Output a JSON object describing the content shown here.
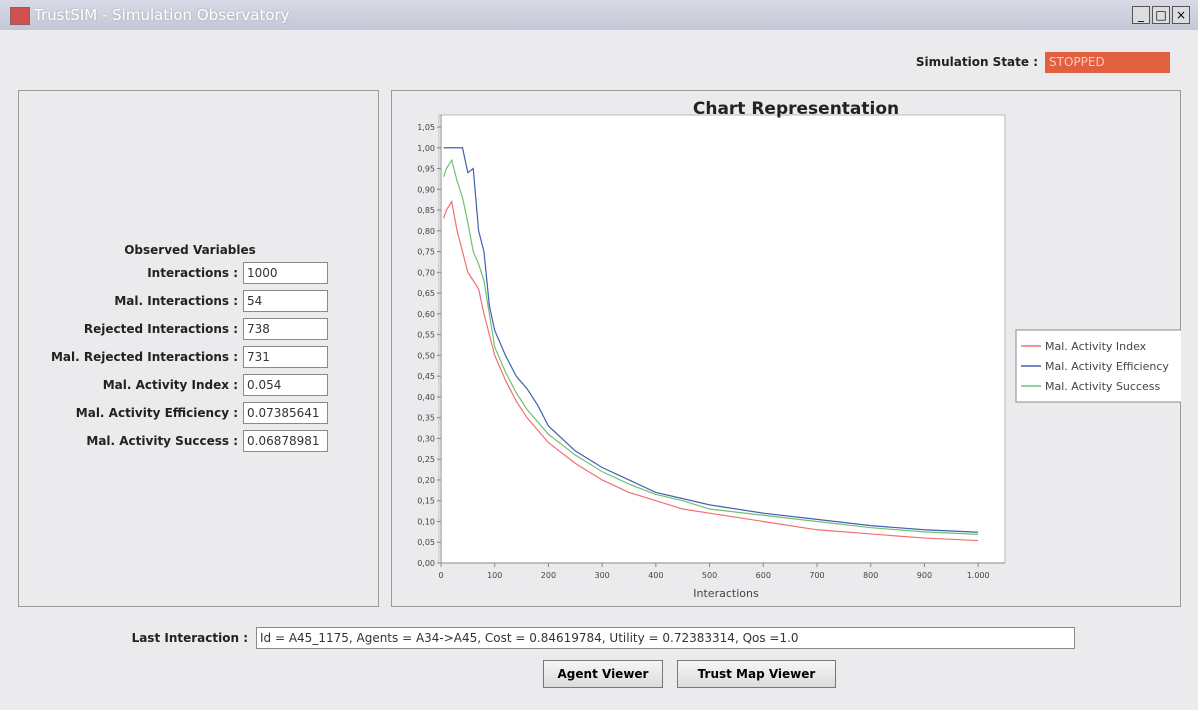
{
  "window": {
    "title": "TrustSIM - Simulation Observatory"
  },
  "state": {
    "label": "Simulation State :",
    "value": "STOPPED"
  },
  "variables": {
    "title": "Observed Variables",
    "rows": [
      {
        "label": "Interactions :",
        "value": "1000"
      },
      {
        "label": "Mal. Interactions :",
        "value": "54"
      },
      {
        "label": "Rejected Interactions :",
        "value": "738"
      },
      {
        "label": "Mal. Rejected Interactions :",
        "value": "731"
      },
      {
        "label": "Mal. Activity Index :",
        "value": "0.054"
      },
      {
        "label": "Mal. Activity Efficiency :",
        "value": "0.07385641"
      },
      {
        "label": "Mal. Activity Success :",
        "value": "0.06878981"
      }
    ]
  },
  "chart_data": {
    "type": "line",
    "title": "Chart Representation",
    "x_label": "Interactions",
    "x": [
      5,
      10,
      20,
      30,
      40,
      50,
      60,
      70,
      80,
      90,
      100,
      120,
      140,
      160,
      180,
      200,
      250,
      300,
      350,
      400,
      450,
      500,
      600,
      700,
      800,
      900,
      1000
    ],
    "series": [
      {
        "name": "Mal. Activity Index",
        "color": "#f07070",
        "values": [
          0.83,
          0.85,
          0.87,
          0.8,
          0.75,
          0.7,
          0.68,
          0.66,
          0.6,
          0.55,
          0.5,
          0.44,
          0.39,
          0.35,
          0.32,
          0.29,
          0.24,
          0.2,
          0.17,
          0.15,
          0.13,
          0.12,
          0.1,
          0.08,
          0.07,
          0.06,
          0.054
        ]
      },
      {
        "name": "Mal. Activity Efficiency",
        "color": "#4060b0",
        "values": [
          1.0,
          1.0,
          1.0,
          1.0,
          1.0,
          0.94,
          0.95,
          0.8,
          0.75,
          0.62,
          0.56,
          0.5,
          0.45,
          0.42,
          0.38,
          0.33,
          0.27,
          0.23,
          0.2,
          0.17,
          0.155,
          0.14,
          0.12,
          0.105,
          0.09,
          0.08,
          0.074
        ]
      },
      {
        "name": "Mal. Activity Success",
        "color": "#70c070",
        "values": [
          0.93,
          0.95,
          0.97,
          0.92,
          0.88,
          0.82,
          0.75,
          0.72,
          0.68,
          0.6,
          0.52,
          0.46,
          0.41,
          0.37,
          0.34,
          0.31,
          0.26,
          0.22,
          0.19,
          0.165,
          0.15,
          0.13,
          0.115,
          0.1,
          0.085,
          0.075,
          0.069
        ]
      }
    ],
    "xlim": [
      0,
      1050
    ],
    "xticks": [
      0,
      100,
      200,
      300,
      400,
      500,
      600,
      700,
      800,
      900,
      {
        "value": 1000,
        "label": "1.000"
      }
    ],
    "ylim": [
      0,
      1.05
    ],
    "yticks": [
      {
        "value": 0,
        "label": "0,00"
      },
      {
        "value": 0.05,
        "label": "0,05"
      },
      {
        "value": 0.1,
        "label": "0,10"
      },
      {
        "value": 0.15,
        "label": "0,15"
      },
      {
        "value": 0.2,
        "label": "0,20"
      },
      {
        "value": 0.25,
        "label": "0,25"
      },
      {
        "value": 0.3,
        "label": "0,30"
      },
      {
        "value": 0.35,
        "label": "0,35"
      },
      {
        "value": 0.4,
        "label": "0,40"
      },
      {
        "value": 0.45,
        "label": "0,45"
      },
      {
        "value": 0.5,
        "label": "0,50"
      },
      {
        "value": 0.55,
        "label": "0,55"
      },
      {
        "value": 0.6,
        "label": "0,60"
      },
      {
        "value": 0.65,
        "label": "0,65"
      },
      {
        "value": 0.7,
        "label": "0,70"
      },
      {
        "value": 0.75,
        "label": "0,75"
      },
      {
        "value": 0.8,
        "label": "0,80"
      },
      {
        "value": 0.85,
        "label": "0,85"
      },
      {
        "value": 0.9,
        "label": "0,90"
      },
      {
        "value": 0.95,
        "label": "0,95"
      },
      {
        "value": 1.0,
        "label": "1,00"
      },
      {
        "value": 1.05,
        "label": "1,05"
      }
    ],
    "legend": "right"
  },
  "last_interaction": {
    "label": "Last Interaction :",
    "value": "Id = A45_1175, Agents = A34->A45, Cost = 0.84619784, Utility = 0.72383314, Qos =1.0"
  },
  "buttons": [
    "Agent Viewer",
    "Trust Map Viewer"
  ]
}
